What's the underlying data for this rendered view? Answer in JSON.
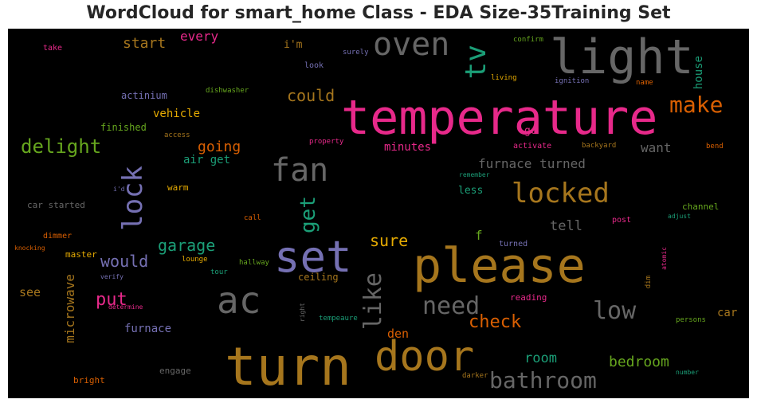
{
  "title": "WordCloud for smart_home Class - EDA Size-35Training Set",
  "words": [
    {
      "text": "temperature",
      "color": "#e7298a"
    },
    {
      "text": "light",
      "color": "#666666"
    },
    {
      "text": "turn",
      "color": "#a6761d"
    },
    {
      "text": "please",
      "color": "#a6761d"
    },
    {
      "text": "set",
      "color": "#7570b3"
    },
    {
      "text": "door",
      "color": "#a6761d"
    },
    {
      "text": "oven",
      "color": "#666666"
    },
    {
      "text": "tv",
      "color": "#1b9e77"
    },
    {
      "text": "ac",
      "color": "#666666"
    },
    {
      "text": "fan",
      "color": "#666666"
    },
    {
      "text": "lock",
      "color": "#7570b3"
    },
    {
      "text": "locked",
      "color": "#a6761d"
    },
    {
      "text": "make",
      "color": "#d95f02"
    },
    {
      "text": "delight",
      "color": "#66a61e"
    },
    {
      "text": "need",
      "color": "#666666"
    },
    {
      "text": "like",
      "color": "#666666"
    },
    {
      "text": "low",
      "color": "#666666"
    },
    {
      "text": "bathroom",
      "color": "#666666"
    },
    {
      "text": "get",
      "color": "#1b9e77"
    },
    {
      "text": "could",
      "color": "#a6761d"
    },
    {
      "text": "put",
      "color": "#e7298a"
    },
    {
      "text": "check",
      "color": "#d95f02"
    },
    {
      "text": "would",
      "color": "#7570b3"
    },
    {
      "text": "garage",
      "color": "#1b9e77"
    },
    {
      "text": "sure",
      "color": "#e6ab02"
    },
    {
      "text": "going",
      "color": "#d95f02"
    },
    {
      "text": "furnace turned",
      "color": "#666666"
    },
    {
      "text": "start",
      "color": "#a6761d"
    },
    {
      "text": "every",
      "color": "#e7298a"
    },
    {
      "text": "bedroom",
      "color": "#66a61e"
    },
    {
      "text": "room",
      "color": "#1b9e77"
    },
    {
      "text": "tell",
      "color": "#666666"
    },
    {
      "text": "want",
      "color": "#666666"
    },
    {
      "text": "minutes",
      "color": "#e7298a"
    },
    {
      "text": "microwave",
      "color": "#a6761d"
    },
    {
      "text": "den",
      "color": "#d95f02"
    },
    {
      "text": "see",
      "color": "#a6761d"
    },
    {
      "text": "furnace",
      "color": "#7570b3"
    },
    {
      "text": "house",
      "color": "#1b9e77"
    },
    {
      "text": "f",
      "color": "#66a61e"
    },
    {
      "text": "car",
      "color": "#a6761d"
    },
    {
      "text": "vehicle",
      "color": "#e6ab02"
    },
    {
      "text": "air get",
      "color": "#1b9e77"
    },
    {
      "text": "i'm",
      "color": "#a6761d"
    },
    {
      "text": "actinium",
      "color": "#7570b3"
    },
    {
      "text": "finished",
      "color": "#66a61e"
    },
    {
      "text": "go",
      "color": "#e7298a"
    },
    {
      "text": "less",
      "color": "#1b9e77"
    },
    {
      "text": "ceiling",
      "color": "#a6761d"
    },
    {
      "text": "warm",
      "color": "#e6ab02"
    },
    {
      "text": "master",
      "color": "#e6ab02"
    },
    {
      "text": "engage",
      "color": "#666666"
    },
    {
      "text": "bright",
      "color": "#d95f02"
    },
    {
      "text": "car started",
      "color": "#666666"
    },
    {
      "text": "dimmer",
      "color": "#d95f02"
    },
    {
      "text": "reading",
      "color": "#e7298a"
    },
    {
      "text": "channel",
      "color": "#66a61e"
    },
    {
      "text": "activate",
      "color": "#e7298a"
    },
    {
      "text": "take",
      "color": "#e7298a"
    },
    {
      "text": "look",
      "color": "#7570b3"
    },
    {
      "text": "post",
      "color": "#e7298a"
    },
    {
      "text": "turned",
      "color": "#7570b3"
    },
    {
      "text": "dishwasher",
      "color": "#66a61e"
    },
    {
      "text": "confirm",
      "color": "#66a61e"
    },
    {
      "text": "surely",
      "color": "#7570b3"
    },
    {
      "text": "living",
      "color": "#e6ab02"
    },
    {
      "text": "ignition",
      "color": "#7570b3"
    },
    {
      "text": "name",
      "color": "#d95f02"
    },
    {
      "text": "access",
      "color": "#a6761d"
    },
    {
      "text": "property",
      "color": "#e7298a"
    },
    {
      "text": "backyard",
      "color": "#a6761d"
    },
    {
      "text": "bend",
      "color": "#d95f02"
    },
    {
      "text": "remember",
      "color": "#1b9e77"
    },
    {
      "text": "i'd",
      "color": "#7570b3"
    },
    {
      "text": "call",
      "color": "#d95f02"
    },
    {
      "text": "adjust",
      "color": "#1b9e77"
    },
    {
      "text": "knocking",
      "color": "#d95f02"
    },
    {
      "text": "lounge",
      "color": "#e6ab02"
    },
    {
      "text": "hallway",
      "color": "#66a61e"
    },
    {
      "text": "tour",
      "color": "#1b9e77"
    },
    {
      "text": "verify",
      "color": "#7570b3"
    },
    {
      "text": "determine",
      "color": "#e7298a"
    },
    {
      "text": "right",
      "color": "#666666"
    },
    {
      "text": "tempeaure",
      "color": "#1b9e77"
    },
    {
      "text": "persons",
      "color": "#66a61e"
    },
    {
      "text": "number",
      "color": "#1b9e77"
    },
    {
      "text": "darker",
      "color": "#a6761d"
    },
    {
      "text": "dim",
      "color": "#a6761d"
    },
    {
      "text": "atomic",
      "color": "#e7298a"
    }
  ]
}
